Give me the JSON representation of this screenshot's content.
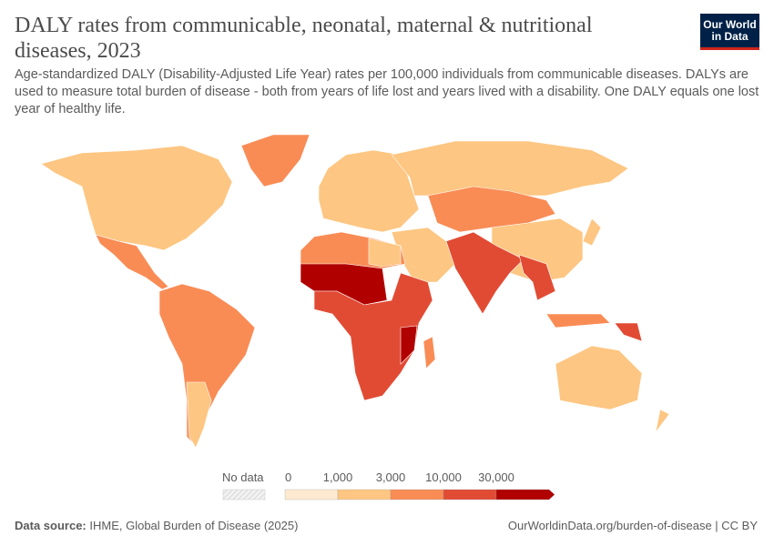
{
  "header": {
    "title": "DALY rates from communicable, neonatal, maternal & nutritional diseases, 2023",
    "subtitle": "Age-standardized DALY (Disability-Adjusted Life Year) rates per 100,000 individuals from communicable diseases. DALYs are used to measure total burden of disease - both from years of life lost and years lived with a disability. One DALY equals one lost year of healthy life.",
    "logo": "Our World in Data"
  },
  "chart_data": {
    "type": "map",
    "title": "DALY rates from communicable, neonatal, maternal & nutritional diseases, 2023",
    "legend": {
      "no_data_label": "No data",
      "tick_labels": [
        "0",
        "1,000",
        "3,000",
        "10,000",
        "30,000"
      ],
      "bins": [
        {
          "min": 0,
          "max": 1000,
          "color": "#feead0"
        },
        {
          "min": 1000,
          "max": 3000,
          "color": "#fdc682"
        },
        {
          "min": 3000,
          "max": 10000,
          "color": "#f98c55"
        },
        {
          "min": 10000,
          "max": 30000,
          "color": "#e14b34"
        },
        {
          "min": 30000,
          "max": null,
          "color": "#b10000"
        }
      ],
      "no_data_color": "#eeeeee",
      "placement": "bottom-center"
    }
  },
  "footer": {
    "source_label": "Data source:",
    "source": "IHME, Global Burden of Disease (2025)",
    "url": "OurWorldinData.org/burden-of-disease | CC BY"
  }
}
